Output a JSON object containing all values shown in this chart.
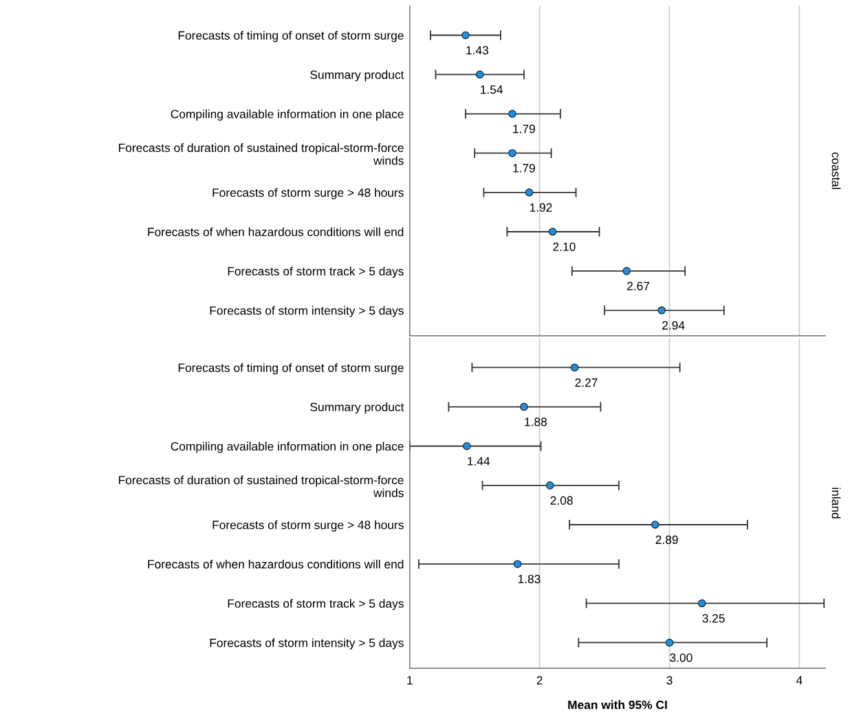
{
  "chart_data": [
    {
      "type": "scatter",
      "ylabel": "coastal",
      "categories": [
        "Forecasts of timing of onset of storm surge",
        "Summary product",
        "Compiling available information in one place",
        "Forecasts of duration of sustained tropical-storm-force winds",
        "Forecasts of storm surge > 48 hours",
        "Forecasts of when hazardous conditions will end",
        "Forecasts of storm track > 5 days",
        "Forecasts of storm intensity > 5 days"
      ],
      "orientation": "horizontal",
      "values": [
        1.43,
        1.54,
        1.79,
        1.79,
        1.92,
        2.1,
        2.67,
        2.94
      ],
      "errors": [
        [
          1.16,
          1.7
        ],
        [
          1.2,
          1.88
        ],
        [
          1.43,
          2.16
        ],
        [
          1.5,
          2.09
        ],
        [
          1.57,
          2.28
        ],
        [
          1.75,
          2.46
        ],
        [
          2.25,
          3.12
        ],
        [
          2.5,
          3.42
        ]
      ],
      "value_labels": [
        "1.43",
        "1.54",
        "1.79",
        "1.79",
        "1.92",
        "2.10",
        "2.67",
        "2.94"
      ],
      "color": "#1e8fe1",
      "marker": "circle",
      "xlim": [
        1,
        4.2
      ],
      "xticks": [
        1,
        2,
        3,
        4
      ],
      "grid": "x",
      "tick_labels": "y"
    },
    {
      "type": "scatter",
      "ylabel": "inland",
      "xlabel": "Mean with 95% CI",
      "categories": [
        "Forecasts of timing of onset of storm surge",
        "Summary product",
        "Compiling available information in one place",
        "Forecasts of duration of sustained tropical-storm-force winds",
        "Forecasts of storm surge > 48 hours",
        "Forecasts of when hazardous conditions will end",
        "Forecasts of storm track > 5 days",
        "Forecasts of storm intensity > 5 days"
      ],
      "orientation": "horizontal",
      "values": [
        2.27,
        1.88,
        1.44,
        2.08,
        2.89,
        1.83,
        3.25,
        3.0
      ],
      "errors": [
        [
          1.48,
          3.08
        ],
        [
          1.3,
          2.47
        ],
        [
          1.0,
          2.01
        ],
        [
          1.56,
          2.61
        ],
        [
          2.23,
          3.6
        ],
        [
          1.07,
          2.61
        ],
        [
          2.36,
          4.19
        ],
        [
          2.3,
          3.75
        ]
      ],
      "value_labels": [
        "2.27",
        "1.88",
        "1.44",
        "2.08",
        "2.89",
        "1.83",
        "3.25",
        "3.00"
      ],
      "color": "#1e8fe1",
      "marker": "circle",
      "xlim": [
        1,
        4.2
      ],
      "xticks": [
        1,
        2,
        3,
        4
      ],
      "grid": "x"
    }
  ]
}
